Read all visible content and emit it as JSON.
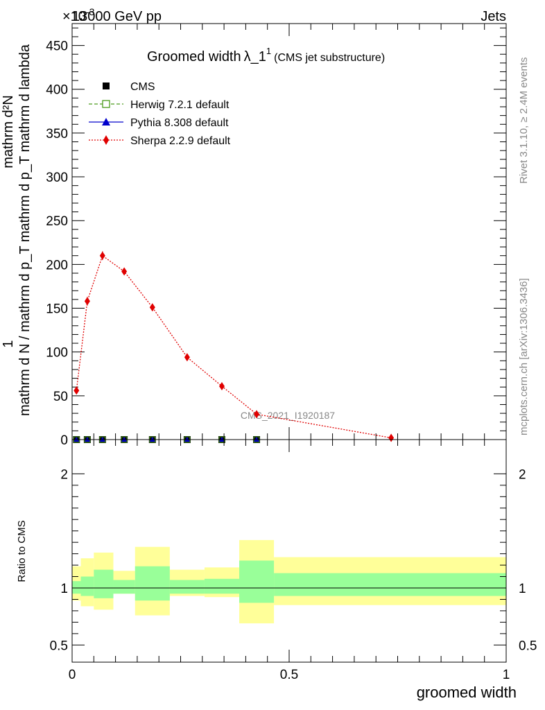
{
  "header": {
    "left": "13000 GeV pp",
    "right": "Jets",
    "exponent_label": "×10",
    "exponent_sup": "-3"
  },
  "side_labels": {
    "rivet": "Rivet 3.1.10, ≥ 2.4M events",
    "mcplots": "mcplots.cern.ch [arXiv:1306.3436]"
  },
  "watermark": "CMS_2021_I1920187",
  "chart_data": [
    {
      "type": "line",
      "title": "Groomed width",
      "title_symbol": "λ_1",
      "title_sup": "1",
      "subtitle": "(CMS jet substructure)",
      "ylabel_top": "1",
      "ylabel_bottom": "mathrm d N / mathrm d p_T mathrm d p_T mathrm d lambda",
      "ylabel_numerator": "mathrm d²N",
      "xlim": [
        0,
        1
      ],
      "ylim": [
        0,
        475
      ],
      "y_ticks": [
        0,
        50,
        100,
        150,
        200,
        250,
        300,
        350,
        400,
        450
      ],
      "legend_position": "top-left",
      "legend": [
        {
          "name": "CMS",
          "color": "#000000",
          "marker": "square-filled",
          "line": "none"
        },
        {
          "name": "Herwig 7.2.1 default",
          "color": "#4a9a1a",
          "marker": "square-open",
          "line": "dashed"
        },
        {
          "name": "Pythia 8.308 default",
          "color": "#0000cc",
          "marker": "triangle",
          "line": "solid"
        },
        {
          "name": "Sherpa 2.2.9 default",
          "color": "#e00000",
          "marker": "diamond",
          "line": "dotted"
        }
      ],
      "series": [
        {
          "name": "CMS",
          "x": [
            0.01,
            0.035,
            0.07,
            0.12,
            0.185,
            0.265,
            0.345,
            0.425
          ],
          "values": [
            0,
            0,
            0,
            0,
            0,
            0,
            0,
            0
          ]
        },
        {
          "name": "Sherpa 2.2.9 default",
          "x": [
            0.01,
            0.035,
            0.07,
            0.12,
            0.185,
            0.265,
            0.345,
            0.425,
            0.735
          ],
          "values": [
            56,
            158,
            210,
            192,
            151,
            94,
            61,
            29,
            2
          ],
          "errors": [
            4,
            5,
            5,
            4,
            3,
            2,
            2,
            1,
            1
          ]
        }
      ]
    },
    {
      "type": "area",
      "ylabel": "Ratio to CMS",
      "xlabel": "groomed width",
      "xlim": [
        0,
        1
      ],
      "ylim": [
        0.35,
        2.3
      ],
      "y_ticks": [
        0.5,
        1,
        2
      ],
      "y_tick_labels": [
        "0.5",
        "1",
        "2"
      ],
      "x_ticks": [
        0,
        0.5,
        1
      ],
      "x_tick_labels": [
        "0",
        "0.5",
        "1"
      ],
      "reference_line": 1,
      "bins": [
        {
          "lo": 0.0,
          "hi": 0.02,
          "stat_lo": 0.95,
          "stat_hi": 1.06,
          "tot_lo": 0.89,
          "tot_hi": 1.19
        },
        {
          "lo": 0.02,
          "hi": 0.05,
          "stat_lo": 0.93,
          "stat_hi": 1.1,
          "tot_lo": 0.84,
          "tot_hi": 1.26
        },
        {
          "lo": 0.05,
          "hi": 0.095,
          "stat_lo": 0.91,
          "stat_hi": 1.16,
          "tot_lo": 0.81,
          "tot_hi": 1.31
        },
        {
          "lo": 0.095,
          "hi": 0.145,
          "stat_lo": 0.95,
          "stat_hi": 1.07,
          "tot_lo": 0.95,
          "tot_hi": 1.15
        },
        {
          "lo": 0.145,
          "hi": 0.225,
          "stat_lo": 0.89,
          "stat_hi": 1.19,
          "tot_lo": 0.76,
          "tot_hi": 1.36
        },
        {
          "lo": 0.225,
          "hi": 0.305,
          "stat_lo": 0.95,
          "stat_hi": 1.07,
          "tot_lo": 0.93,
          "tot_hi": 1.16
        },
        {
          "lo": 0.305,
          "hi": 0.385,
          "stat_lo": 0.95,
          "stat_hi": 1.08,
          "tot_lo": 0.92,
          "tot_hi": 1.18
        },
        {
          "lo": 0.385,
          "hi": 0.465,
          "stat_lo": 0.87,
          "stat_hi": 1.24,
          "tot_lo": 0.69,
          "tot_hi": 1.42
        },
        {
          "lo": 0.465,
          "hi": 1.0,
          "stat_lo": 0.93,
          "stat_hi": 1.13,
          "tot_lo": 0.85,
          "tot_hi": 1.27
        }
      ]
    }
  ]
}
